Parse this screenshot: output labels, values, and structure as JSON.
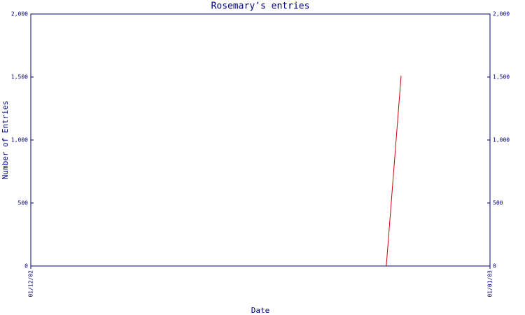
{
  "chart_data": {
    "type": "line",
    "title": "Rosemary's entries",
    "x_label": "Date",
    "y_label": "Number of Entries",
    "x": [
      "25/12/02",
      "26/12/02"
    ],
    "values": [
      0,
      1510
    ],
    "color": "#cc0000",
    "xlim": [
      "01/12/02",
      "01/01/03"
    ],
    "xticks": [
      "01/12/02",
      "01/01/03"
    ],
    "ylim": [
      0,
      2000
    ],
    "yticks": [
      0,
      500,
      {
        "value": 1000,
        "label": "1,000"
      },
      {
        "value": 1500,
        "label": "1,500"
      },
      {
        "value": 2000,
        "label": "2,000"
      }
    ],
    "right_axis": true,
    "grid": false,
    "axis_color": "#000080"
  }
}
